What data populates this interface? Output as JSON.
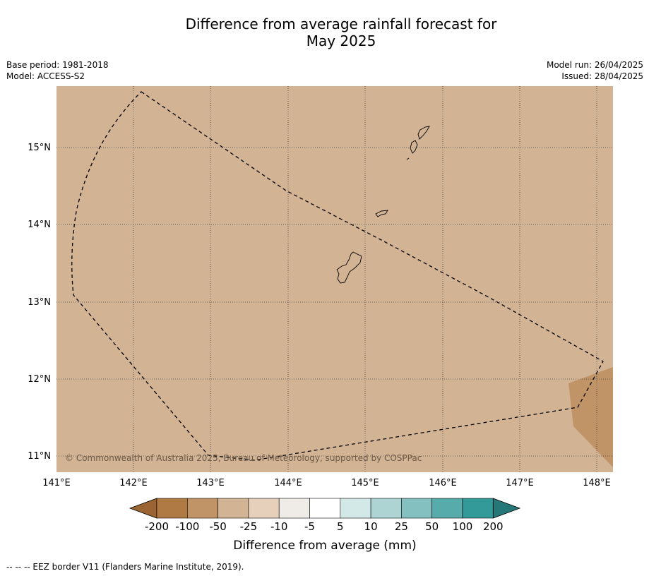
{
  "title_line1": "Difference from average rainfall forecast for",
  "title_line2": "May 2025",
  "info_left": {
    "base_period": "Base period: 1981-2018",
    "model": "Model: ACCESS-S2"
  },
  "info_right": {
    "model_run": "Model run: 26/04/2025",
    "issued": "Issued: 28/04/2025"
  },
  "map": {
    "lon_ticks": [
      "141°E",
      "142°E",
      "143°E",
      "144°E",
      "145°E",
      "146°E",
      "147°E",
      "148°E"
    ],
    "lat_ticks": [
      "15°N",
      "14°N",
      "13°N",
      "12°N",
      "11°N"
    ],
    "background_color": "#d2b394",
    "patch_color": "#c19468",
    "copyright": "© Commonwealth of Australia 2025, Bureau of Meteorology, supported by COSPPac"
  },
  "colorbar": {
    "labels": [
      "-200",
      "-100",
      "-50",
      "-25",
      "-10",
      "-5",
      "5",
      "10",
      "25",
      "50",
      "100",
      "200"
    ],
    "colors": [
      "#9b6533",
      "#b07a44",
      "#c19468",
      "#d2b394",
      "#e6d0bc",
      "#efebe6",
      "#ffffff",
      "#d3e9e8",
      "#add4d2",
      "#85c0c1",
      "#58abab",
      "#339a99",
      "#267878"
    ],
    "title": "Difference from average (mm)"
  },
  "footer": "--  --  -- EEZ border V11 (Flanders Marine Institute, 2019)."
}
